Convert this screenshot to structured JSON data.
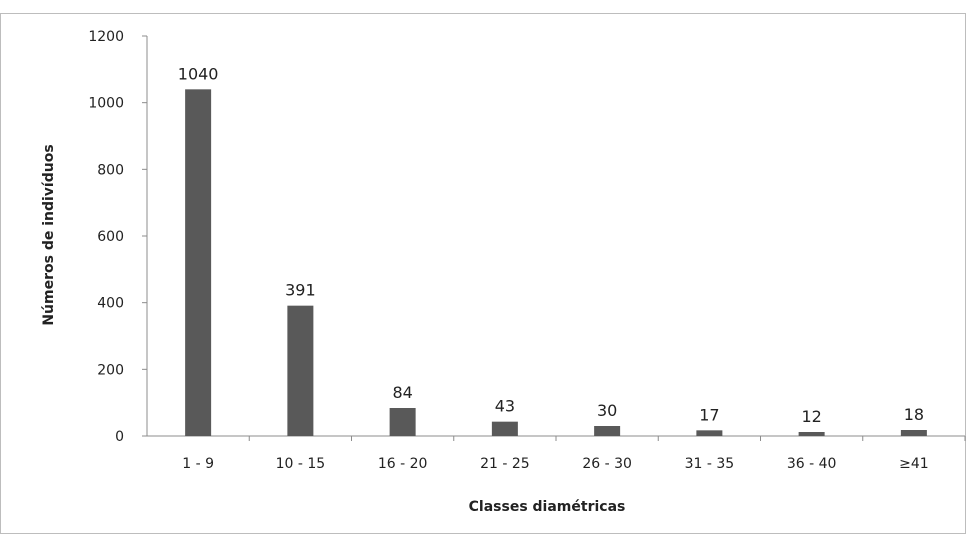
{
  "chart_data": {
    "type": "bar",
    "categories": [
      "1 - 9",
      "10 - 15",
      "16 - 20",
      "21 - 25",
      "26 - 30",
      "31 - 35",
      "36 - 40",
      "≥41"
    ],
    "values": [
      1040,
      391,
      84,
      43,
      30,
      17,
      12,
      18
    ],
    "data_labels": [
      "1040",
      "391",
      "84",
      "43",
      "30",
      "17",
      "12",
      "18"
    ],
    "title": "",
    "xlabel": "Classes diamétricas",
    "ylabel": "Números de indivíduos",
    "ylim": [
      0,
      1200
    ],
    "yticks": [
      0,
      200,
      400,
      600,
      800,
      1000,
      1200
    ],
    "grid": false,
    "legend": "none",
    "bar_color": "#595959"
  }
}
